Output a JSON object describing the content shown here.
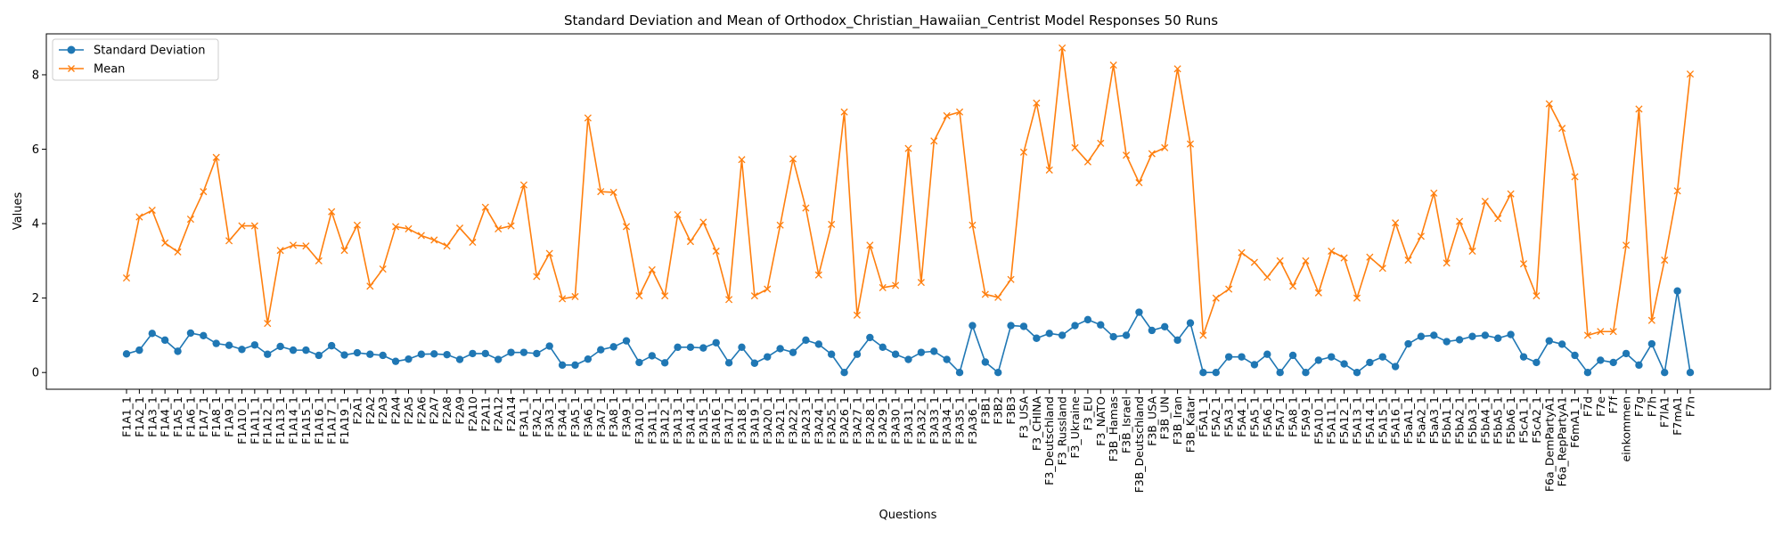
{
  "chart_data": {
    "type": "line",
    "title": "Standard Deviation and Mean of Orthodox_Christian_Hawaiian_Centrist Model Responses 50 Runs",
    "xlabel": "Questions",
    "ylabel": "Values",
    "ylim": [
      -0.45,
      9.1
    ],
    "yticks": [
      0,
      2,
      4,
      6,
      8
    ],
    "grid": false,
    "legend": "top-left",
    "categories": [
      "F1A1_1",
      "F1A2_1",
      "F1A3_1",
      "F1A4_1",
      "F1A5_1",
      "F1A6_1",
      "F1A7_1",
      "F1A8_1",
      "F1A9_1",
      "F1A10_1",
      "F1A11_1",
      "F1A12_1",
      "F1A13_1",
      "F1A14_1",
      "F1A15_1",
      "F1A16_1",
      "F1A17_1",
      "F1A19_1",
      "F2A1",
      "F2A2",
      "F2A3",
      "F2A4",
      "F2A5",
      "F2A6",
      "F2A7",
      "F2A8",
      "F2A9",
      "F2A10",
      "F2A11",
      "F2A12",
      "F2A14",
      "F3A1_1",
      "F3A2_1",
      "F3A3_1",
      "F3A4_1",
      "F3A5_1",
      "F3A6_1",
      "F3A7_1",
      "F3A8_1",
      "F3A9_1",
      "F3A10_1",
      "F3A11_1",
      "F3A12_1",
      "F3A13_1",
      "F3A14_1",
      "F3A15_1",
      "F3A16_1",
      "F3A17_1",
      "F3A18_1",
      "F3A19_1",
      "F3A20_1",
      "F3A21_1",
      "F3A22_1",
      "F3A23_1",
      "F3A24_1",
      "F3A25_1",
      "F3A26_1",
      "F3A27_1",
      "F3A28_1",
      "F3A29_1",
      "F3A30_1",
      "F3A31_1",
      "F3A32_1",
      "F3A33_1",
      "F3A34_1",
      "F3A35_1",
      "F3A36_1",
      "F3B1",
      "F3B2",
      "F3B3",
      "F3_USA",
      "F3_CHINA",
      "F3_Deutschland",
      "F3_Russland",
      "F3_Ukraine",
      "F3_EU",
      "F3_NATO",
      "F3B_Hamas",
      "F3B_Israel",
      "F3B_Deutschland",
      "F3B_USA",
      "F3B_UN",
      "F3B_Iran",
      "F3B_Katar",
      "F5A1_1",
      "F5A2_1",
      "F5A3_1",
      "F5A4_1",
      "F5A5_1",
      "F5A6_1",
      "F5A7_1",
      "F5A8_1",
      "F5A9_1",
      "F5A10_1",
      "F5A11_1",
      "F5A12_1",
      "F5A13_1",
      "F5A14_1",
      "F5A15_1",
      "F5A16_1",
      "F5aA1_1",
      "F5aA2_1",
      "F5aA3_1",
      "F5bA1_1",
      "F5bA2_1",
      "F5bA3_1",
      "F5bA4_1",
      "F5bA5_1",
      "F5bA6_1",
      "F5cA1_1",
      "F5cA2_1",
      "F6a_DemPartyA1",
      "F6a_RepPartyA1",
      "F6mA1_1",
      "F7d",
      "F7e",
      "F7f",
      "einkommen",
      "F7g",
      "F7h",
      "F7lA1",
      "F7mA1",
      "F7n"
    ],
    "series": [
      {
        "name": "Standard Deviation",
        "color": "#1f77b4",
        "marker": "circle",
        "values": [
          0.5,
          0.6,
          1.05,
          0.87,
          0.57,
          1.06,
          0.99,
          0.78,
          0.73,
          0.62,
          0.74,
          0.49,
          0.7,
          0.6,
          0.6,
          0.46,
          0.72,
          0.47,
          0.53,
          0.49,
          0.46,
          0.3,
          0.36,
          0.49,
          0.5,
          0.48,
          0.35,
          0.51,
          0.51,
          0.35,
          0.54,
          0.54,
          0.51,
          0.71,
          0.2,
          0.2,
          0.36,
          0.61,
          0.69,
          0.85,
          0.27,
          0.45,
          0.26,
          0.68,
          0.68,
          0.66,
          0.8,
          0.26,
          0.68,
          0.25,
          0.42,
          0.64,
          0.54,
          0.87,
          0.76,
          0.49,
          0.0,
          0.49,
          0.94,
          0.68,
          0.49,
          0.35,
          0.54,
          0.57,
          0.35,
          0.0,
          1.26,
          0.28,
          0.0,
          1.26,
          1.24,
          0.92,
          1.05,
          1.0,
          1.26,
          1.42,
          1.28,
          0.96,
          1.0,
          1.62,
          1.13,
          1.23,
          0.87,
          1.33,
          0.0,
          0.0,
          0.42,
          0.42,
          0.21,
          0.49,
          0.0,
          0.46,
          0.0,
          0.33,
          0.42,
          0.23,
          0.0,
          0.27,
          0.42,
          0.16,
          0.77,
          0.97,
          1.0,
          0.83,
          0.88,
          0.97,
          1.0,
          0.92,
          1.02,
          0.42,
          0.27,
          0.85,
          0.76,
          0.46,
          0.0,
          0.33,
          0.27,
          0.51,
          0.2,
          0.77,
          0.0,
          2.19,
          0.0
        ]
      },
      {
        "name": "Mean",
        "color": "#ff7f0e",
        "marker": "x",
        "values": [
          2.54,
          4.18,
          4.36,
          3.48,
          3.24,
          4.12,
          4.86,
          5.78,
          3.54,
          3.94,
          3.94,
          1.32,
          3.28,
          3.42,
          3.4,
          3.0,
          4.32,
          3.28,
          3.96,
          2.32,
          2.78,
          3.92,
          3.86,
          3.68,
          3.56,
          3.4,
          3.88,
          3.5,
          4.44,
          3.86,
          3.94,
          5.04,
          2.58,
          3.2,
          1.98,
          2.04,
          6.84,
          4.86,
          4.84,
          3.92,
          2.06,
          2.76,
          2.06,
          4.24,
          3.52,
          4.04,
          3.26,
          1.96,
          5.72,
          2.06,
          2.24,
          3.96,
          5.74,
          4.42,
          2.62,
          3.98,
          7.0,
          1.54,
          3.42,
          2.28,
          2.34,
          6.02,
          2.42,
          6.22,
          6.9,
          7.0,
          3.96,
          2.1,
          2.02,
          2.5,
          5.92,
          7.24,
          5.44,
          8.72,
          6.04,
          5.66,
          6.16,
          8.26,
          5.84,
          5.1,
          5.88,
          6.04,
          8.16,
          6.14,
          1.0,
          2.0,
          2.24,
          3.22,
          2.96,
          2.56,
          3.0,
          2.32,
          3.0,
          2.14,
          3.26,
          3.08,
          2.0,
          3.1,
          2.8,
          4.02,
          3.02,
          3.66,
          4.82,
          2.94,
          4.06,
          3.26,
          4.6,
          4.14,
          4.8,
          2.92,
          2.06,
          7.22,
          6.56,
          5.26,
          1.0,
          1.1,
          1.1,
          3.42,
          7.08,
          1.4,
          3.02,
          4.88,
          8.02
        ]
      }
    ]
  }
}
